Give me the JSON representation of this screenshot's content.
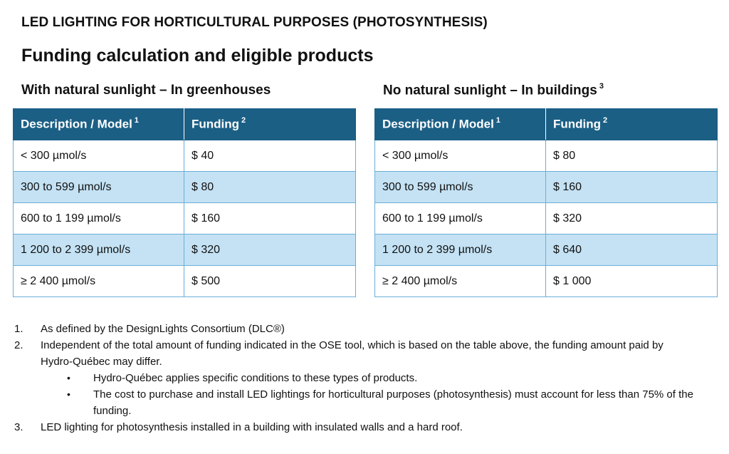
{
  "title": "LED LIGHTING FOR HORTICULTURAL PURPOSES (PHOTOSYNTHESIS)",
  "subtitle": "Funding calculation and eligible products",
  "tables": [
    {
      "heading": "With natural sunlight – In greenhouses",
      "heading_sup": "",
      "columns": [
        {
          "label": "Description / Model",
          "sup": "1"
        },
        {
          "label": "Funding",
          "sup": "2"
        }
      ],
      "rows": [
        [
          "< 300 µmol/s",
          "$ 40"
        ],
        [
          "300 to 599 µmol/s",
          "$ 80"
        ],
        [
          "600 to 1 199 µmol/s",
          "$ 160"
        ],
        [
          "1 200 to 2 399 µmol/s",
          "$ 320"
        ],
        [
          "≥ 2 400 µmol/s",
          "$ 500"
        ]
      ]
    },
    {
      "heading": "No natural sunlight – In buildings",
      "heading_sup": "3",
      "columns": [
        {
          "label": "Description / Model",
          "sup": "1"
        },
        {
          "label": "Funding",
          "sup": "2"
        }
      ],
      "rows": [
        [
          "< 300 µmol/s",
          "$ 80"
        ],
        [
          "300 to 599 µmol/s",
          "$ 160"
        ],
        [
          "600 to 1 199 µmol/s",
          "$ 320"
        ],
        [
          "1 200 to 2 399 µmol/s",
          "$ 640"
        ],
        [
          "≥ 2  400 µmol/s",
          "$ 1 000"
        ]
      ]
    }
  ],
  "notes": [
    {
      "num": "1.",
      "text": "As defined by the DesignLights Consortium (DLC®)"
    },
    {
      "num": "2.",
      "text": "Independent of the total amount of funding indicated in the OSE tool, which is based on the table above, the funding amount paid by Hydro-Québec may differ."
    },
    {
      "num": "3.",
      "text": "LED lighting for photosynthesis installed in a building with insulated walls and a hard roof."
    }
  ],
  "bullets": [
    {
      "symbol": "•",
      "text": "Hydro-Québec applies specific conditions to these types of products."
    },
    {
      "symbol": "•",
      "text": "The cost to purchase and install LED lightings for horticultural purposes (photosynthesis) must account for less than 75% of the funding."
    }
  ]
}
